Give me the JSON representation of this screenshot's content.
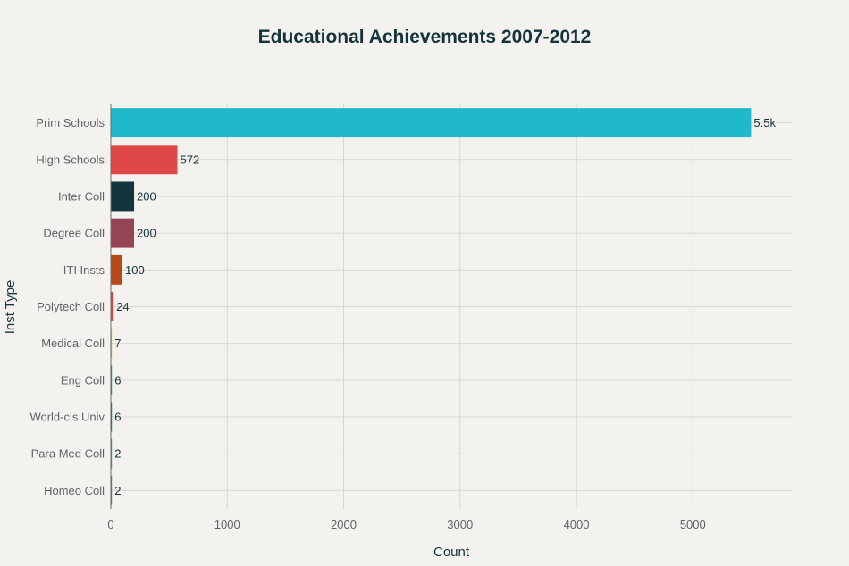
{
  "chart_data": {
    "type": "bar",
    "orientation": "horizontal",
    "title": "Educational Achievements 2007-2012",
    "xlabel": "Count",
    "ylabel": "Inst Type",
    "xlim": [
      0,
      5850
    ],
    "xticks": [
      0,
      1000,
      2000,
      3000,
      4000,
      5000
    ],
    "grid": true,
    "legend": "none",
    "categories": [
      "Prim Schools",
      "High Schools",
      "Inter Coll",
      "Degree Coll",
      "ITI Insts",
      "Polytech Coll",
      "Medical Coll",
      "Eng Coll",
      "World-cls Univ",
      "Para Med Coll",
      "Homeo Coll"
    ],
    "values": [
      5500,
      572,
      200,
      200,
      100,
      24,
      7,
      6,
      6,
      2,
      2
    ],
    "value_labels": [
      "5.5k",
      "572",
      "200",
      "200",
      "100",
      "24",
      "7",
      "6",
      "6",
      "2",
      "2"
    ],
    "colors": [
      "#1fb8cd",
      "#e04848",
      "#13343b",
      "#944454",
      "#b4491a",
      "#d2453f",
      "#d6b845",
      "#2e8b57",
      "#1f6b5e",
      "#5d878f",
      "#6d6d6d"
    ]
  }
}
